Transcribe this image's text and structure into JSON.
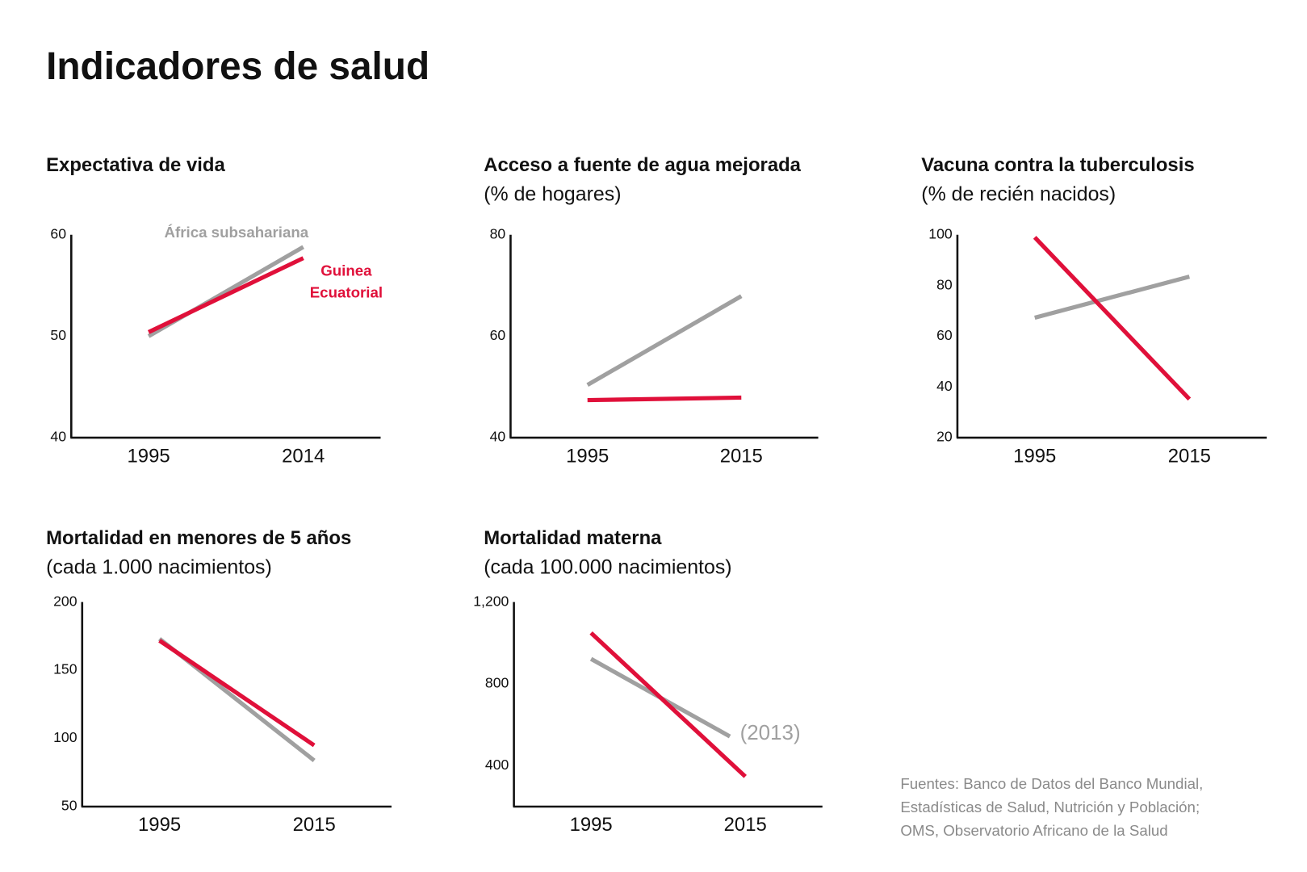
{
  "title": "Indicadores de salud",
  "chart_data": [
    {
      "type": "line",
      "title": "Expectativa de vida",
      "categories": [
        "1995",
        "2014"
      ],
      "ylim": [
        40,
        60
      ],
      "yticks": [
        40,
        50,
        60
      ],
      "series": [
        {
          "name": "África subsahariana",
          "color": "#a0a0a0",
          "values": [
            50.0,
            58.8
          ]
        },
        {
          "name": "Guinea Ecuatorial",
          "color": "#e0103a",
          "values": [
            50.4,
            57.7
          ]
        }
      ]
    },
    {
      "type": "line",
      "title": "Acceso a fuente de agua mejorada",
      "subtitle": "(% de hogares)",
      "categories": [
        "1995",
        "2015"
      ],
      "ylim": [
        40,
        80
      ],
      "yticks": [
        40,
        60,
        80
      ],
      "series": [
        {
          "name": "África subsahariana",
          "color": "#a0a0a0",
          "values": [
            50.4,
            67.9
          ]
        },
        {
          "name": "Guinea Ecuatorial",
          "color": "#e0103a",
          "values": [
            47.4,
            47.9
          ]
        }
      ]
    },
    {
      "type": "line",
      "title": "Vacuna contra la tuberculosis",
      "subtitle": "(% de recién nacidos)",
      "categories": [
        "1995",
        "2015"
      ],
      "ylim": [
        20,
        100
      ],
      "yticks": [
        20,
        40,
        60,
        80,
        100
      ],
      "series": [
        {
          "name": "África subsahariana",
          "color": "#a0a0a0",
          "values": [
            67.3,
            83.5
          ]
        },
        {
          "name": "Guinea Ecuatorial",
          "color": "#e0103a",
          "values": [
            99,
            35.2
          ]
        }
      ]
    },
    {
      "type": "line",
      "title": "Mortalidad en menores de 5 años",
      "subtitle": "(cada 1.000 nacimientos)",
      "categories": [
        "1995",
        "2015"
      ],
      "ylim": [
        50,
        200
      ],
      "yticks": [
        50,
        100,
        150,
        200
      ],
      "series": [
        {
          "name": "África subsahariana",
          "color": "#a0a0a0",
          "values": [
            173,
            83.8
          ]
        },
        {
          "name": "Guinea Ecuatorial",
          "color": "#e0103a",
          "values": [
            171.7,
            94.9
          ]
        }
      ]
    },
    {
      "type": "line",
      "title": "Mortalidad materna",
      "subtitle": "(cada 100.000 nacimientos)",
      "xlim": [
        1985,
        2025
      ],
      "xticks": [
        1995,
        2015
      ],
      "ylim": [
        200,
        1200
      ],
      "yticks": [
        400,
        800,
        {
          "value": 1200,
          "label": "1,200"
        }
      ],
      "annotation": "(2013)",
      "series": [
        {
          "name": "África subsahariana",
          "color": "#a0a0a0",
          "x": [
            1995,
            2013
          ],
          "values": [
            922,
            543
          ]
        },
        {
          "name": "Guinea Ecuatorial",
          "color": "#e0103a",
          "x": [
            1995,
            2015
          ],
          "values": [
            1049,
            347
          ]
        }
      ]
    }
  ],
  "source": [
    "Fuentes: Banco de Datos del Banco Mundial,",
    "Estadísticas de Salud, Nutrición y Población;",
    "OMS, Observatorio Africano de la Salud"
  ]
}
